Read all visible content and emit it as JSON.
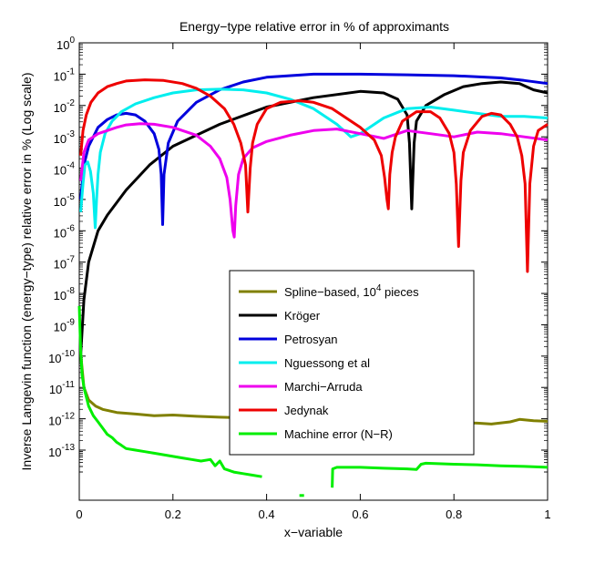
{
  "chart_data": {
    "type": "line",
    "title": "Energy−type relative error in % of approximants",
    "xlabel": "x−variable",
    "ylabel": "Inverse Langevin function (energy−type) relative error in % (Log scale)",
    "xlim": [
      0,
      1
    ],
    "ylim_log10": [
      -14.6,
      0
    ],
    "yscale": "log",
    "x_ticks": [
      "0",
      "0.2",
      "0.4",
      "0.6",
      "0.8",
      "1"
    ],
    "x_tick_values": [
      0,
      0.2,
      0.4,
      0.6,
      0.8,
      1
    ],
    "y_tick_exponents": [
      0,
      -1,
      -2,
      -3,
      -4,
      -5,
      -6,
      -7,
      -8,
      -9,
      -10,
      -11,
      -12,
      -13
    ],
    "y_tick_base": "10",
    "legend_position": "center-right",
    "series": [
      {
        "name": "Spline−based, 10",
        "name_sup": "4",
        "name_suffix": " pieces",
        "color": "#808000",
        "x": [
          0.003,
          0.01,
          0.02,
          0.035,
          0.05,
          0.08,
          0.12,
          0.16,
          0.2,
          0.25,
          0.3,
          0.35,
          0.4,
          0.45,
          0.5,
          0.55,
          0.6,
          0.65,
          0.7,
          0.75,
          0.8,
          0.85,
          0.88,
          0.92,
          0.94,
          0.97,
          1.0
        ],
        "log10y": [
          -9.9,
          -11.0,
          -11.4,
          -11.6,
          -11.7,
          -11.8,
          -11.85,
          -11.9,
          -11.88,
          -11.92,
          -11.95,
          -11.97,
          -11.95,
          -12.0,
          -12.0,
          -12.02,
          -12.05,
          -12.07,
          -12.08,
          -12.1,
          -12.12,
          -12.14,
          -12.17,
          -12.1,
          -12.02,
          -12.06,
          -12.08
        ]
      },
      {
        "name": "Kröger",
        "color": "#000000",
        "x": [
          0.003,
          0.01,
          0.02,
          0.04,
          0.06,
          0.08,
          0.1,
          0.15,
          0.2,
          0.3,
          0.4,
          0.5,
          0.6,
          0.65,
          0.68,
          0.7,
          0.705,
          0.71,
          0.715,
          0.72,
          0.74,
          0.78,
          0.82,
          0.86,
          0.9,
          0.94,
          0.97,
          1.0
        ],
        "log10y": [
          -10.0,
          -8.2,
          -7.0,
          -6.0,
          -5.5,
          -5.1,
          -4.7,
          -3.9,
          -3.3,
          -2.6,
          -2.05,
          -1.75,
          -1.55,
          -1.6,
          -1.8,
          -2.3,
          -3.2,
          -5.3,
          -3.2,
          -2.5,
          -2.0,
          -1.65,
          -1.4,
          -1.3,
          -1.25,
          -1.3,
          -1.5,
          -1.6
        ]
      },
      {
        "name": "Petrosyan",
        "color": "#0000dd",
        "x": [
          0.003,
          0.01,
          0.02,
          0.04,
          0.06,
          0.08,
          0.1,
          0.12,
          0.14,
          0.16,
          0.17,
          0.175,
          0.178,
          0.181,
          0.19,
          0.21,
          0.25,
          0.3,
          0.35,
          0.4,
          0.5,
          0.6,
          0.7,
          0.8,
          0.9,
          0.95,
          1.0
        ],
        "log10y": [
          -5.0,
          -3.9,
          -3.3,
          -2.7,
          -2.45,
          -2.3,
          -2.25,
          -2.3,
          -2.5,
          -2.9,
          -3.4,
          -4.2,
          -5.8,
          -4.2,
          -3.2,
          -2.5,
          -1.9,
          -1.5,
          -1.25,
          -1.1,
          -1.0,
          -1.0,
          -1.02,
          -1.05,
          -1.12,
          -1.2,
          -1.3
        ]
      },
      {
        "name": "Nguessong et al",
        "color": "#00eeee",
        "x": [
          0.003,
          0.008,
          0.012,
          0.018,
          0.024,
          0.03,
          0.034,
          0.037,
          0.04,
          0.045,
          0.055,
          0.07,
          0.09,
          0.12,
          0.16,
          0.2,
          0.25,
          0.3,
          0.35,
          0.4,
          0.45,
          0.5,
          0.55,
          0.58,
          0.6,
          0.65,
          0.7,
          0.75,
          0.8,
          0.85,
          0.9,
          0.95,
          1.0
        ],
        "log10y": [
          -5.4,
          -4.5,
          -3.9,
          -3.8,
          -4.1,
          -4.8,
          -5.9,
          -5.0,
          -4.2,
          -3.5,
          -2.9,
          -2.5,
          -2.2,
          -1.95,
          -1.75,
          -1.6,
          -1.5,
          -1.48,
          -1.5,
          -1.6,
          -1.8,
          -2.1,
          -2.6,
          -3.0,
          -2.9,
          -2.4,
          -2.1,
          -2.05,
          -2.15,
          -2.25,
          -2.35,
          -2.35,
          -2.4
        ]
      },
      {
        "name": "Marchi−Arruda",
        "color": "#ee00ee",
        "x": [
          0.003,
          0.01,
          0.02,
          0.04,
          0.06,
          0.08,
          0.1,
          0.13,
          0.16,
          0.2,
          0.25,
          0.28,
          0.3,
          0.315,
          0.322,
          0.328,
          0.331,
          0.334,
          0.34,
          0.35,
          0.37,
          0.4,
          0.45,
          0.5,
          0.55,
          0.6,
          0.65,
          0.7,
          0.75,
          0.8,
          0.85,
          0.9,
          0.95,
          1.0
        ],
        "log10y": [
          -4.4,
          -3.5,
          -3.1,
          -2.9,
          -2.8,
          -2.7,
          -2.62,
          -2.58,
          -2.6,
          -2.7,
          -2.95,
          -3.3,
          -3.7,
          -4.3,
          -5.0,
          -6.0,
          -6.2,
          -5.2,
          -4.2,
          -3.7,
          -3.35,
          -3.15,
          -2.95,
          -2.8,
          -2.75,
          -2.9,
          -3.05,
          -2.8,
          -2.9,
          -3.0,
          -2.85,
          -2.9,
          -3.0,
          -3.1
        ]
      },
      {
        "name": "Jedynak",
        "color": "#ee0000",
        "x": [
          0.003,
          0.008,
          0.015,
          0.025,
          0.04,
          0.06,
          0.08,
          0.1,
          0.14,
          0.18,
          0.22,
          0.25,
          0.28,
          0.31,
          0.33,
          0.345,
          0.355,
          0.36,
          0.365,
          0.37,
          0.38,
          0.4,
          0.43,
          0.47,
          0.5,
          0.54,
          0.57,
          0.6,
          0.63,
          0.645,
          0.652,
          0.657,
          0.66,
          0.663,
          0.668,
          0.675,
          0.69,
          0.72,
          0.75,
          0.77,
          0.79,
          0.8,
          0.805,
          0.81,
          0.815,
          0.82,
          0.835,
          0.86,
          0.88,
          0.9,
          0.92,
          0.935,
          0.945,
          0.952,
          0.957,
          0.962,
          0.97,
          0.98,
          1.0
        ],
        "log10y": [
          -3.6,
          -2.8,
          -2.3,
          -1.9,
          -1.6,
          -1.4,
          -1.3,
          -1.22,
          -1.18,
          -1.2,
          -1.3,
          -1.45,
          -1.7,
          -2.1,
          -2.6,
          -3.2,
          -3.9,
          -5.4,
          -4.0,
          -3.2,
          -2.6,
          -2.1,
          -1.9,
          -1.85,
          -1.9,
          -2.1,
          -2.4,
          -2.7,
          -3.1,
          -3.6,
          -4.3,
          -5.0,
          -5.3,
          -4.2,
          -3.5,
          -3.0,
          -2.5,
          -2.2,
          -2.2,
          -2.4,
          -2.9,
          -3.5,
          -4.5,
          -6.5,
          -4.4,
          -3.5,
          -2.8,
          -2.35,
          -2.25,
          -2.3,
          -2.6,
          -3.0,
          -3.6,
          -4.5,
          -7.3,
          -4.5,
          -3.3,
          -2.8,
          -2.6
        ]
      },
      {
        "name": "Machine error (N−R)",
        "color": "#00ee00",
        "segments": [
          {
            "x": [
              0.0,
              0.003,
              0.006,
              0.01,
              0.015,
              0.02,
              0.03,
              0.04,
              0.05,
              0.06,
              0.07,
              0.08,
              0.09,
              0.1,
              0.12,
              0.14,
              0.16,
              0.18,
              0.2,
              0.22,
              0.24,
              0.26,
              0.28,
              0.29,
              0.3,
              0.31,
              0.32,
              0.33,
              0.35,
              0.37,
              0.39
            ],
            "log10y": [
              -8.4,
              -9.8,
              -10.6,
              -11.0,
              -11.3,
              -11.6,
              -11.9,
              -12.1,
              -12.3,
              -12.5,
              -12.6,
              -12.75,
              -12.85,
              -12.95,
              -13.0,
              -13.05,
              -13.1,
              -13.15,
              -13.2,
              -13.25,
              -13.3,
              -13.35,
              -13.3,
              -13.5,
              -13.35,
              -13.6,
              -13.65,
              -13.7,
              -13.75,
              -13.8,
              -13.85
            ]
          },
          {
            "x": [
              0.47,
              0.48
            ],
            "log10y": [
              -14.45,
              -14.45
            ]
          },
          {
            "x": [
              0.54,
              0.541,
              0.55,
              0.6,
              0.65,
              0.7,
              0.72,
              0.73,
              0.74,
              0.8,
              0.85,
              0.9,
              0.95,
              1.0
            ],
            "log10y": [
              -14.2,
              -13.6,
              -13.55,
              -13.55,
              -13.58,
              -13.6,
              -13.62,
              -13.45,
              -13.42,
              -13.45,
              -13.47,
              -13.5,
              -13.52,
              -13.55
            ]
          }
        ]
      }
    ]
  }
}
